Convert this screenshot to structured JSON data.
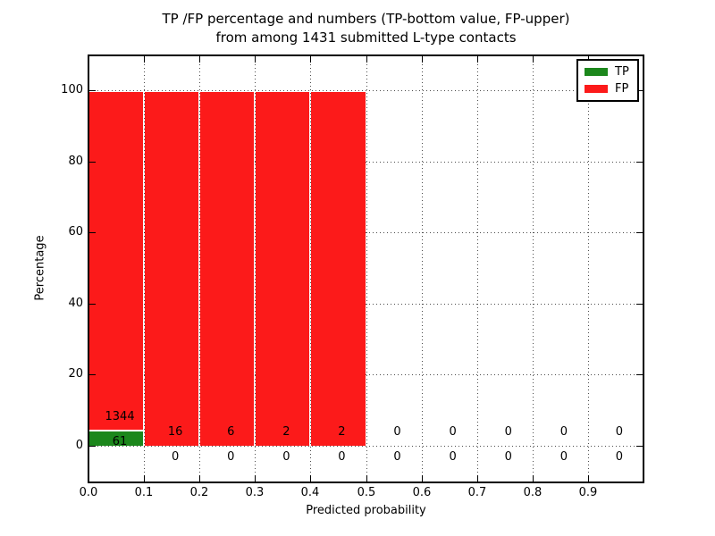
{
  "title": {
    "line1": "TP /FP percentage and numbers (TP-bottom value, FP-upper)",
    "line2": "from among 1431 submitted L-type contacts"
  },
  "axes": {
    "xlabel": "Predicted probability",
    "ylabel": "Percentage",
    "x_tick_labels": [
      "0.0",
      "0.1",
      "0.2",
      "0.3",
      "0.4",
      "0.5",
      "0.6",
      "0.7",
      "0.8",
      "0.9"
    ],
    "y_tick_labels": [
      "0",
      "20",
      "40",
      "60",
      "80",
      "100"
    ]
  },
  "legend": {
    "items": [
      {
        "label": "TP",
        "color": "#1c871c"
      },
      {
        "label": "FP",
        "color": "#fc1a1a"
      }
    ]
  },
  "chart_data": {
    "type": "bar",
    "stacked": true,
    "title": "TP /FP percentage and numbers (TP-bottom value, FP-upper) from among 1431 submitted L-type contacts",
    "xlabel": "Predicted probability",
    "ylabel": "Percentage",
    "total_submitted": 1431,
    "bin_width": 0.1,
    "bin_starts": [
      0.0,
      0.1,
      0.2,
      0.3,
      0.4,
      0.5,
      0.6,
      0.7,
      0.8,
      0.9
    ],
    "x_tick_labels": [
      "0.0",
      "0.1",
      "0.2",
      "0.3",
      "0.4",
      "0.5",
      "0.6",
      "0.7",
      "0.8",
      "0.9"
    ],
    "y_ticks": [
      0,
      20,
      40,
      60,
      80,
      100
    ],
    "xlim": [
      0.0,
      1.0
    ],
    "ylim": [
      -10,
      110
    ],
    "grid": true,
    "grid_style": "dotted",
    "legend_position": "upper right",
    "series": [
      {
        "name": "TP",
        "color": "#1c871c",
        "counts": [
          61,
          0,
          0,
          0,
          0,
          0,
          0,
          0,
          0,
          0
        ],
        "percent": [
          4.34,
          0,
          0,
          0,
          0,
          0,
          0,
          0,
          0,
          0
        ]
      },
      {
        "name": "FP",
        "color": "#fc1a1a",
        "counts": [
          1344,
          16,
          6,
          2,
          2,
          0,
          0,
          0,
          0,
          0
        ],
        "percent": [
          95.66,
          100,
          100,
          100,
          100,
          0,
          0,
          0,
          0,
          0
        ]
      }
    ],
    "annotations": {
      "fp_row": [
        "1344",
        "16",
        "6",
        "2",
        "2",
        "0",
        "0",
        "0",
        "0",
        "0"
      ],
      "tp_row": [
        "61",
        "0",
        "0",
        "0",
        "0",
        "0",
        "0",
        "0",
        "0",
        "0"
      ]
    }
  }
}
